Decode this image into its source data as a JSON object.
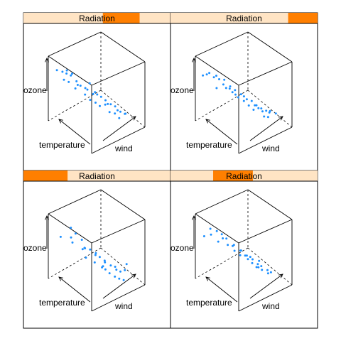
{
  "chart_data": {
    "type": "scatter3d",
    "panel_strip_label": "Radiation",
    "axis_labels": {
      "x": "wind",
      "y": "temperature",
      "z": "ozone"
    },
    "colors": {
      "points": "#1e90ff",
      "strip_bg": "#ffe4c4",
      "strip_active": "#ff7f00",
      "border": "#000000"
    },
    "panels": [
      {
        "radiation_shingle": [
          0.54,
          0.79
        ],
        "points": [
          [
            0.12,
            0.95,
            0.72
          ],
          [
            0.2,
            0.92,
            0.68
          ],
          [
            0.25,
            0.88,
            0.7
          ],
          [
            0.3,
            0.85,
            0.62
          ],
          [
            0.22,
            0.8,
            0.58
          ],
          [
            0.35,
            0.78,
            0.55
          ],
          [
            0.28,
            0.72,
            0.5
          ],
          [
            0.4,
            0.75,
            0.48
          ],
          [
            0.45,
            0.7,
            0.45
          ],
          [
            0.5,
            0.66,
            0.52
          ],
          [
            0.38,
            0.62,
            0.42
          ],
          [
            0.55,
            0.6,
            0.4
          ],
          [
            0.42,
            0.55,
            0.36
          ],
          [
            0.6,
            0.52,
            0.35
          ],
          [
            0.48,
            0.5,
            0.32
          ],
          [
            0.65,
            0.48,
            0.3
          ],
          [
            0.52,
            0.45,
            0.28
          ],
          [
            0.7,
            0.42,
            0.25
          ],
          [
            0.58,
            0.4,
            0.3
          ],
          [
            0.75,
            0.38,
            0.22
          ],
          [
            0.62,
            0.35,
            0.2
          ],
          [
            0.68,
            0.3,
            0.18
          ],
          [
            0.8,
            0.32,
            0.15
          ],
          [
            0.72,
            0.25,
            0.12
          ],
          [
            0.85,
            0.28,
            0.12
          ],
          [
            0.3,
            0.82,
            0.66
          ],
          [
            0.18,
            0.86,
            0.6
          ],
          [
            0.44,
            0.64,
            0.46
          ],
          [
            0.56,
            0.56,
            0.38
          ],
          [
            0.66,
            0.44,
            0.26
          ],
          [
            0.78,
            0.36,
            0.16
          ],
          [
            0.34,
            0.74,
            0.52
          ],
          [
            0.5,
            0.58,
            0.4
          ],
          [
            0.88,
            0.3,
            0.1
          ],
          [
            0.26,
            0.9,
            0.64
          ]
        ]
      },
      {
        "radiation_shingle": [
          0.8,
          1.0
        ],
        "points": [
          [
            0.1,
            0.95,
            0.65
          ],
          [
            0.18,
            0.9,
            0.68
          ],
          [
            0.25,
            0.88,
            0.6
          ],
          [
            0.3,
            0.82,
            0.58
          ],
          [
            0.38,
            0.8,
            0.55
          ],
          [
            0.22,
            0.78,
            0.5
          ],
          [
            0.45,
            0.75,
            0.45
          ],
          [
            0.35,
            0.72,
            0.48
          ],
          [
            0.5,
            0.7,
            0.4
          ],
          [
            0.42,
            0.66,
            0.42
          ],
          [
            0.55,
            0.62,
            0.36
          ],
          [
            0.48,
            0.6,
            0.35
          ],
          [
            0.6,
            0.55,
            0.3
          ],
          [
            0.52,
            0.52,
            0.32
          ],
          [
            0.65,
            0.5,
            0.28
          ],
          [
            0.58,
            0.48,
            0.25
          ],
          [
            0.7,
            0.45,
            0.22
          ],
          [
            0.62,
            0.42,
            0.2
          ],
          [
            0.75,
            0.4,
            0.18
          ],
          [
            0.68,
            0.38,
            0.22
          ],
          [
            0.8,
            0.35,
            0.15
          ],
          [
            0.72,
            0.3,
            0.12
          ],
          [
            0.85,
            0.32,
            0.14
          ],
          [
            0.78,
            0.28,
            0.1
          ],
          [
            0.9,
            0.25,
            0.12
          ],
          [
            0.28,
            0.86,
            0.62
          ],
          [
            0.4,
            0.7,
            0.46
          ],
          [
            0.57,
            0.58,
            0.34
          ],
          [
            0.66,
            0.44,
            0.24
          ],
          [
            0.82,
            0.3,
            0.14
          ],
          [
            0.15,
            0.92,
            0.66
          ],
          [
            0.33,
            0.76,
            0.52
          ],
          [
            0.46,
            0.64,
            0.38
          ],
          [
            0.74,
            0.36,
            0.16
          ]
        ]
      },
      {
        "radiation_shingle": [
          0.0,
          0.3
        ],
        "points": [
          [
            0.15,
            0.9,
            0.6
          ],
          [
            0.3,
            0.85,
            0.7
          ],
          [
            0.35,
            0.8,
            0.62
          ],
          [
            0.25,
            0.75,
            0.55
          ],
          [
            0.45,
            0.78,
            0.5
          ],
          [
            0.4,
            0.7,
            0.42
          ],
          [
            0.5,
            0.65,
            0.4
          ],
          [
            0.38,
            0.6,
            0.35
          ],
          [
            0.55,
            0.58,
            0.36
          ],
          [
            0.6,
            0.55,
            0.3
          ],
          [
            0.48,
            0.52,
            0.28
          ],
          [
            0.65,
            0.5,
            0.25
          ],
          [
            0.58,
            0.45,
            0.22
          ],
          [
            0.7,
            0.42,
            0.2
          ],
          [
            0.52,
            0.4,
            0.25
          ],
          [
            0.75,
            0.38,
            0.18
          ],
          [
            0.62,
            0.35,
            0.15
          ],
          [
            0.8,
            0.32,
            0.12
          ],
          [
            0.68,
            0.3,
            0.1
          ],
          [
            0.85,
            0.28,
            0.14
          ],
          [
            0.72,
            0.25,
            0.08
          ],
          [
            0.9,
            0.3,
            0.2
          ],
          [
            0.78,
            0.22,
            0.05
          ],
          [
            0.42,
            0.68,
            0.44
          ],
          [
            0.56,
            0.6,
            0.32
          ],
          [
            0.64,
            0.48,
            0.24
          ],
          [
            0.28,
            0.82,
            0.58
          ],
          [
            0.46,
            0.72,
            0.4
          ],
          [
            0.74,
            0.34,
            0.16
          ],
          [
            0.6,
            0.42,
            0.18
          ]
        ]
      },
      {
        "radiation_shingle": [
          0.29,
          0.56
        ],
        "points": [
          [
            0.1,
            0.92,
            0.62
          ],
          [
            0.2,
            0.9,
            0.7
          ],
          [
            0.28,
            0.85,
            0.66
          ],
          [
            0.35,
            0.82,
            0.6
          ],
          [
            0.25,
            0.78,
            0.55
          ],
          [
            0.42,
            0.8,
            0.52
          ],
          [
            0.38,
            0.72,
            0.48
          ],
          [
            0.48,
            0.7,
            0.45
          ],
          [
            0.45,
            0.65,
            0.4
          ],
          [
            0.55,
            0.62,
            0.38
          ],
          [
            0.5,
            0.58,
            0.35
          ],
          [
            0.6,
            0.55,
            0.32
          ],
          [
            0.58,
            0.5,
            0.3
          ],
          [
            0.65,
            0.48,
            0.28
          ],
          [
            0.62,
            0.45,
            0.25
          ],
          [
            0.7,
            0.42,
            0.22
          ],
          [
            0.68,
            0.38,
            0.2
          ],
          [
            0.75,
            0.4,
            0.18
          ],
          [
            0.72,
            0.35,
            0.16
          ],
          [
            0.8,
            0.32,
            0.14
          ],
          [
            0.78,
            0.28,
            0.12
          ],
          [
            0.85,
            0.3,
            0.1
          ],
          [
            0.32,
            0.76,
            0.58
          ],
          [
            0.44,
            0.68,
            0.46
          ],
          [
            0.52,
            0.6,
            0.4
          ],
          [
            0.64,
            0.52,
            0.3
          ],
          [
            0.74,
            0.44,
            0.24
          ],
          [
            0.18,
            0.86,
            0.64
          ],
          [
            0.56,
            0.54,
            0.34
          ],
          [
            0.66,
            0.4,
            0.2
          ]
        ]
      }
    ]
  }
}
